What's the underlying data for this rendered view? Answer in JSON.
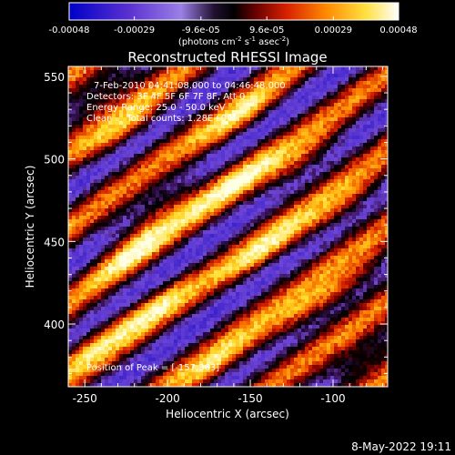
{
  "chart_data": {
    "type": "heatmap",
    "title": "Reconstructed RHESSI Image",
    "xlabel": "Heliocentric X (arcsec)",
    "ylabel": "Heliocentric Y (arcsec)",
    "x_ticks": [
      -250,
      -200,
      -150,
      -100
    ],
    "y_ticks": [
      400,
      450,
      500,
      550
    ],
    "xlim": [
      -260,
      -67
    ],
    "ylim": [
      362,
      556
    ],
    "colorbar": {
      "ticks": [
        "-0.00048",
        "-0.00029",
        "-9.6e-05",
        "9.6e-05",
        "0.00029",
        "0.00048"
      ],
      "tick_values": [
        -0.00048,
        -0.00029,
        -9.6e-05,
        9.6e-05,
        0.00029,
        0.00048
      ],
      "range": [
        -0.00048,
        0.00048
      ],
      "unit_label_parts": [
        "(photons cm",
        "-2",
        " s",
        "-1",
        " asec",
        "-2",
        ")"
      ],
      "colors": [
        "#0000c8",
        "#6a3fd6",
        "#8c6fe0",
        "#000000",
        "#c81e00",
        "#ff9000",
        "#ffff60",
        "#ffffff"
      ]
    },
    "stripe_model": {
      "description_units": "data units (arcsec)",
      "direction_slope": 0.72,
      "period_along_y": 46,
      "bright_bands_intercept_y": [
        392,
        438,
        484,
        530,
        346
      ],
      "bright_peaks": [
        {
          "x": -240,
          "y": 540
        },
        {
          "x": -225,
          "y": 518
        },
        {
          "x": -155,
          "y": 525
        },
        {
          "x": -120,
          "y": 497
        },
        {
          "x": -205,
          "y": 470
        },
        {
          "x": -160,
          "y": 485
        },
        {
          "x": -210,
          "y": 410
        },
        {
          "x": -250,
          "y": 385
        },
        {
          "x": -140,
          "y": 445
        },
        {
          "x": -95,
          "y": 470
        },
        {
          "x": -170,
          "y": 375
        },
        {
          "x": -120,
          "y": 405
        },
        {
          "x": -90,
          "y": 425
        },
        {
          "x": -80,
          "y": 380
        },
        {
          "x": -220,
          "y": 445
        }
      ]
    },
    "info_lines": [
      "7-Feb-2010 04:41:08.000 to 04:46:48.000",
      "Detectors: 3F 4F 5F 6F 7F 8F, Att 0",
      "Energy Range: 25.0 - 50.0 keV",
      "Clean     Total counts: 1.28E+04"
    ],
    "peak_label": "Position of Peak = [-157,363]"
  },
  "footer": {
    "timestamp": "8-May-2022 19:11"
  }
}
